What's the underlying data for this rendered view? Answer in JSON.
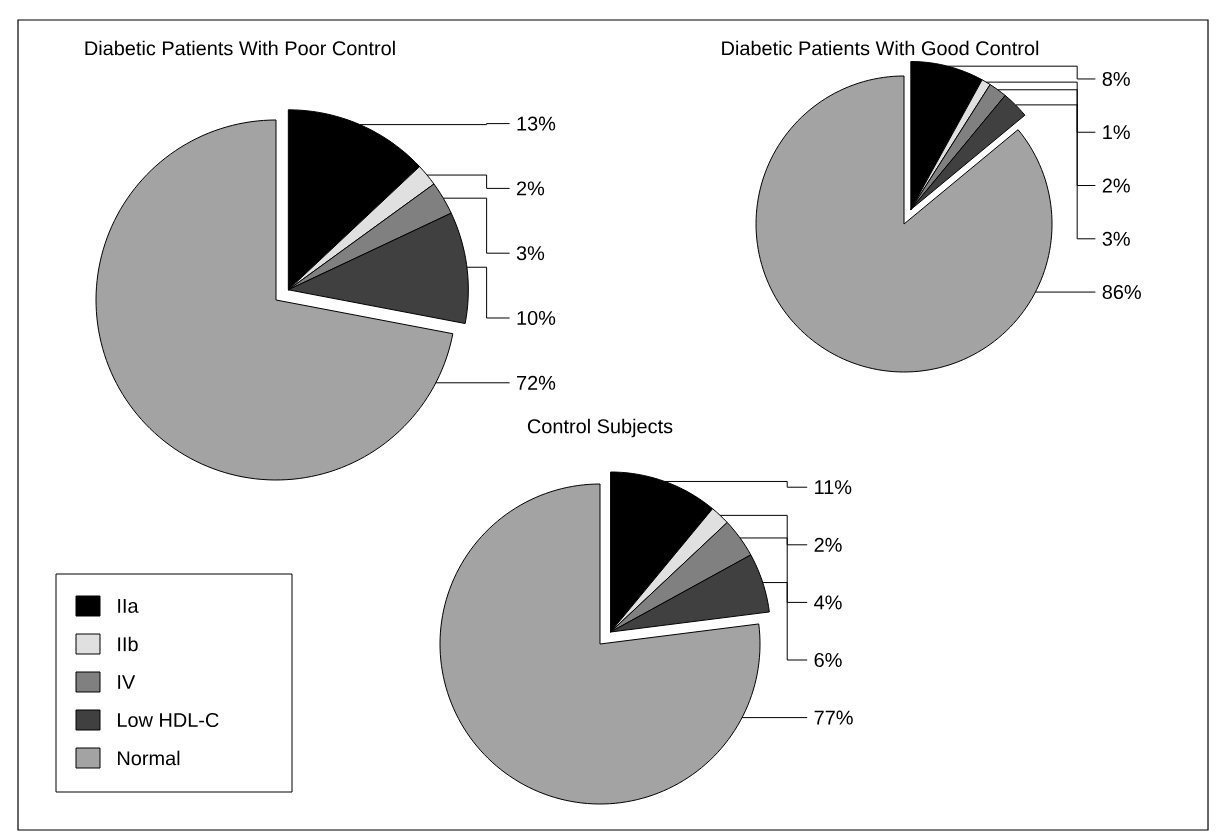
{
  "chart_data": [
    {
      "type": "pie",
      "title": "Diabetic Patients With Poor Control",
      "categories": [
        null,
        null,
        null,
        null,
        null
      ],
      "values": [
        13,
        2,
        3,
        10,
        72
      ],
      "value_labels": [
        "13%",
        "2%",
        "3%",
        "10%",
        "72%"
      ],
      "colors": [
        "#000000",
        "#e0e0e0",
        "#808080",
        "#404040",
        "#a3a3a3"
      ]
    },
    {
      "type": "pie",
      "title": "Diabetic Patients With Good Control",
      "categories": [
        null,
        null,
        null,
        null,
        null
      ],
      "values": [
        8,
        1,
        2,
        3,
        86
      ],
      "value_labels": [
        "8%",
        "1%",
        "2%",
        "3%",
        "86%"
      ],
      "colors": [
        "#000000",
        "#e0e0e0",
        "#808080",
        "#404040",
        "#a3a3a3"
      ]
    },
    {
      "type": "pie",
      "title": "Control Subjects",
      "categories": [
        "IIa",
        "IIb",
        "IV",
        "Low HDL-C",
        "Normal"
      ],
      "values": [
        11,
        2,
        4,
        6,
        77
      ],
      "value_labels": [
        "11%",
        "2%",
        "4%",
        "6%",
        "77%"
      ],
      "colors": [
        "#000000",
        "#e0e0e0",
        "#808080",
        "#404040",
        "#a3a3a3"
      ],
      "legend": "bottom left"
    }
  ]
}
